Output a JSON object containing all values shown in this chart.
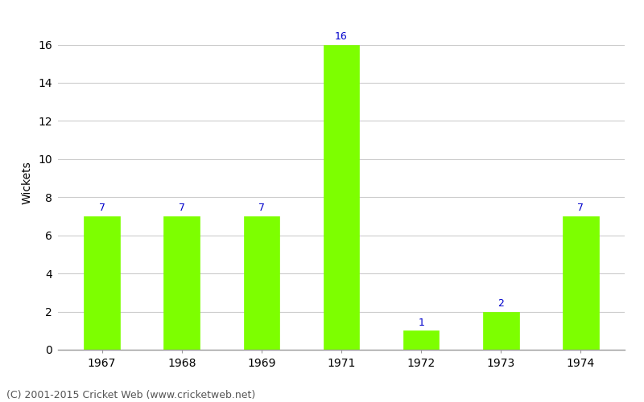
{
  "categories": [
    "1967",
    "1968",
    "1969",
    "1971",
    "1972",
    "1973",
    "1974"
  ],
  "values": [
    7,
    7,
    7,
    16,
    1,
    2,
    7
  ],
  "bar_color": "#7dff00",
  "bar_edge_color": "#7dff00",
  "label_color": "#0000cc",
  "ylabel": "Wickets",
  "ylim": [
    0,
    17.5
  ],
  "yticks": [
    0,
    2,
    4,
    6,
    8,
    10,
    12,
    14,
    16
  ],
  "grid_color": "#cccccc",
  "background_color": "#ffffff",
  "footer_text": "(C) 2001-2015 Cricket Web (www.cricketweb.net)",
  "label_fontsize": 9,
  "tick_fontsize": 10,
  "ylabel_fontsize": 10,
  "footer_fontsize": 9,
  "bar_width": 0.45
}
